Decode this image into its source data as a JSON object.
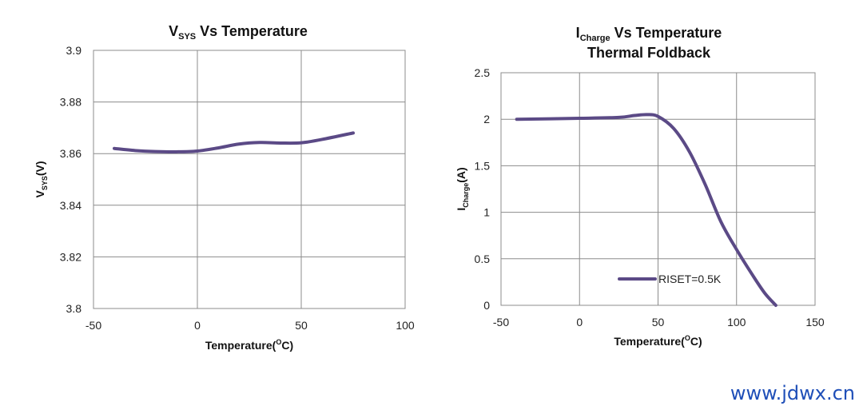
{
  "chart_data": [
    {
      "type": "line",
      "title_main": "V",
      "title_sub": "SYS",
      "title_rest": " Vs  Temperature",
      "xlabel_main": "Temperature(",
      "xlabel_sup": "O",
      "xlabel_rest": "C)",
      "ylabel_main": "V",
      "ylabel_sub": "SYS",
      "ylabel_rest": "(V)",
      "xlim": [
        -50,
        100
      ],
      "ylim": [
        3.8,
        3.9
      ],
      "xticks": [
        -50,
        0,
        50,
        100
      ],
      "xtick_labels": [
        "-50",
        "0",
        "50",
        "100"
      ],
      "yticks": [
        3.8,
        3.82,
        3.84,
        3.86,
        3.88,
        3.9
      ],
      "ytick_labels": [
        "3.8",
        "3.82",
        "3.84",
        "3.86",
        "3.88",
        "3.9"
      ],
      "grid": true,
      "series": [
        {
          "name": "VSYS",
          "color": "#5b4a86",
          "x": [
            -40,
            -30,
            -20,
            -10,
            0,
            10,
            20,
            30,
            40,
            50,
            60,
            75
          ],
          "y": [
            3.862,
            3.8612,
            3.8608,
            3.8607,
            3.861,
            3.8622,
            3.8637,
            3.8643,
            3.8641,
            3.8642,
            3.8655,
            3.868
          ]
        }
      ]
    },
    {
      "type": "line",
      "title_main": "I",
      "title_sub": "Charge",
      "title_rest": " Vs Temperature",
      "title_line2": "Thermal Foldback",
      "xlabel_main": "Temperature(",
      "xlabel_sup": "O",
      "xlabel_rest": "C)",
      "ylabel_main": "I",
      "ylabel_sub": "Charge",
      "ylabel_rest": "(A)",
      "xlim": [
        -50,
        150
      ],
      "ylim": [
        0,
        2.5
      ],
      "xticks": [
        -50,
        0,
        50,
        100,
        150
      ],
      "xtick_labels": [
        "-50",
        "0",
        "50",
        "100",
        "150"
      ],
      "yticks": [
        0,
        0.5,
        1,
        1.5,
        2,
        2.5
      ],
      "ytick_labels": [
        "0",
        "0.5",
        "1",
        "1.5",
        "2",
        "2.5"
      ],
      "grid": true,
      "legend_position": "bottom-right",
      "series": [
        {
          "name": "RISET=0.5K",
          "color": "#5b4a86",
          "x": [
            -40,
            0,
            25,
            35,
            43,
            50,
            60,
            70,
            80,
            90,
            100,
            110,
            118,
            125
          ],
          "y": [
            2.0,
            2.01,
            2.02,
            2.04,
            2.05,
            2.03,
            1.9,
            1.65,
            1.3,
            0.9,
            0.6,
            0.33,
            0.13,
            0.0
          ]
        }
      ]
    }
  ],
  "watermark": "www.jdwx.cn"
}
